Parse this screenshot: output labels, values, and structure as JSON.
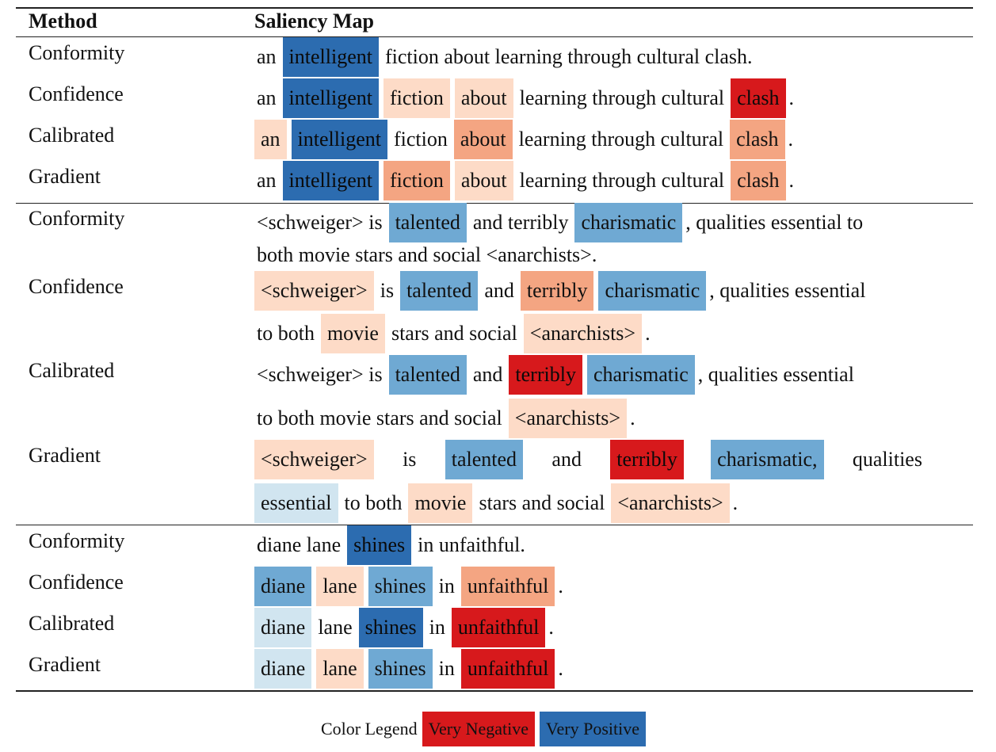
{
  "header": {
    "method": "Method",
    "saliency": "Saliency Map"
  },
  "colors": {
    "vneg": "#d7191c",
    "neg": "#f4a582",
    "wneg": "#fddbc7",
    "wpos": "#d1e5f0",
    "pos": "#6fa9d3",
    "vpos": "#2c6cb0"
  },
  "rows": [
    {
      "method": "Conformity",
      "top": 52,
      "lines": [
        {
          "top": 47,
          "tokens": [
            {
              "t": "an"
            },
            {
              "t": "intelligent",
              "c": "vpos"
            },
            {
              "t": "fiction about learning through cultural clash."
            }
          ]
        }
      ]
    },
    {
      "method": "Confidence",
      "top": 104,
      "lines": [
        {
          "top": 99,
          "tokens": [
            {
              "t": "an"
            },
            {
              "t": "intelligent",
              "c": "vpos"
            },
            {
              "t": "fiction",
              "c": "wneg"
            },
            {
              "t": "about",
              "c": "wneg"
            },
            {
              "t": "learning through cultural"
            },
            {
              "t": "clash",
              "c": "vneg"
            },
            {
              "t": ".",
              "p": 1
            }
          ]
        }
      ]
    },
    {
      "method": "Calibrated",
      "top": 156,
      "lines": [
        {
          "top": 151,
          "tokens": [
            {
              "t": "an",
              "c": "wneg"
            },
            {
              "t": "intelligent",
              "c": "vpos"
            },
            {
              "t": "fiction"
            },
            {
              "t": "about",
              "c": "neg"
            },
            {
              "t": "learning through cultural"
            },
            {
              "t": "clash",
              "c": "neg"
            },
            {
              "t": ".",
              "p": 1
            }
          ]
        }
      ]
    },
    {
      "method": "Gradient",
      "top": 208,
      "lines": [
        {
          "top": 203,
          "tokens": [
            {
              "t": "an"
            },
            {
              "t": "intelligent",
              "c": "vpos"
            },
            {
              "t": "fiction",
              "c": "neg"
            },
            {
              "t": "about",
              "c": "wneg"
            },
            {
              "t": "learning through cultural"
            },
            {
              "t": "clash",
              "c": "neg"
            },
            {
              "t": ".",
              "p": 1
            }
          ]
        }
      ]
    },
    {
      "method": "Conformity",
      "top": 261,
      "lines": [
        {
          "top": 256,
          "tokens": [
            {
              "t": "<schweiger> is"
            },
            {
              "t": "talented",
              "c": "pos"
            },
            {
              "t": "and terribly"
            },
            {
              "t": "charismatic",
              "c": "pos"
            },
            {
              "t": ", qualities essential to",
              "p": 1
            }
          ]
        },
        {
          "top": 297,
          "tokens": [
            {
              "t": "both movie stars and social <anarchists>."
            }
          ]
        }
      ]
    },
    {
      "method": "Confidence",
      "top": 347,
      "lines": [
        {
          "top": 342,
          "tokens": [
            {
              "t": "<schweiger>",
              "c": "wneg"
            },
            {
              "t": "is"
            },
            {
              "t": "talented",
              "c": "pos"
            },
            {
              "t": "and"
            },
            {
              "t": "terribly",
              "c": "neg"
            },
            {
              "t": "charismatic",
              "c": "pos"
            },
            {
              "t": ", qualities essential",
              "p": 1
            }
          ]
        },
        {
          "top": 396,
          "tokens": [
            {
              "t": "to both"
            },
            {
              "t": "movie",
              "c": "wneg"
            },
            {
              "t": "stars and social"
            },
            {
              "t": "<anarchists>",
              "c": "wneg"
            },
            {
              "t": ".",
              "p": 1
            }
          ]
        }
      ]
    },
    {
      "method": "Calibrated",
      "top": 453,
      "lines": [
        {
          "top": 448,
          "tokens": [
            {
              "t": "<schweiger> is"
            },
            {
              "t": "talented",
              "c": "pos"
            },
            {
              "t": "and"
            },
            {
              "t": "terribly",
              "c": "vneg"
            },
            {
              "t": "charismatic",
              "c": "pos"
            },
            {
              "t": ", qualities essential",
              "p": 1
            }
          ]
        },
        {
          "top": 503,
          "tokens": [
            {
              "t": "to both movie stars and social"
            },
            {
              "t": "<anarchists>",
              "c": "wneg"
            },
            {
              "t": ".",
              "p": 1
            }
          ]
        }
      ]
    },
    {
      "method": "Gradient",
      "top": 560,
      "lines": [
        {
          "top": 555,
          "justify": true,
          "tokens": [
            {
              "t": "<schweiger>",
              "c": "wneg"
            },
            {
              "t": "is"
            },
            {
              "t": "talented",
              "c": "pos"
            },
            {
              "t": "and"
            },
            {
              "t": "terribly",
              "c": "vneg"
            },
            {
              "t": "charismatic,",
              "c": "pos"
            },
            {
              "t": "qualities"
            }
          ]
        },
        {
          "top": 610,
          "tokens": [
            {
              "t": "essential",
              "c": "wpos"
            },
            {
              "t": "to both"
            },
            {
              "t": "movie",
              "c": "wneg"
            },
            {
              "t": "stars and social"
            },
            {
              "t": "<anarchists>",
              "c": "wneg"
            },
            {
              "t": ".",
              "p": 1
            }
          ]
        }
      ]
    },
    {
      "method": "Conformity",
      "top": 668,
      "lines": [
        {
          "top": 663,
          "tokens": [
            {
              "t": "diane lane"
            },
            {
              "t": "shines",
              "c": "vpos"
            },
            {
              "t": "in unfaithful."
            }
          ]
        }
      ]
    },
    {
      "method": "Confidence",
      "top": 720,
      "lines": [
        {
          "top": 715,
          "tokens": [
            {
              "t": "diane",
              "c": "pos"
            },
            {
              "t": "lane",
              "c": "wneg"
            },
            {
              "t": "shines",
              "c": "pos"
            },
            {
              "t": "in"
            },
            {
              "t": "unfaithful",
              "c": "neg"
            },
            {
              "t": ".",
              "p": 1
            }
          ]
        }
      ]
    },
    {
      "method": "Calibrated",
      "top": 772,
      "lines": [
        {
          "top": 767,
          "tokens": [
            {
              "t": "diane",
              "c": "wpos"
            },
            {
              "t": "lane"
            },
            {
              "t": "shines",
              "c": "vpos"
            },
            {
              "t": "in"
            },
            {
              "t": "unfaithful",
              "c": "vneg"
            },
            {
              "t": ".",
              "p": 1
            }
          ]
        }
      ]
    },
    {
      "method": "Gradient",
      "top": 824,
      "lines": [
        {
          "top": 819,
          "tokens": [
            {
              "t": "diane",
              "c": "wpos"
            },
            {
              "t": "lane",
              "c": "wneg"
            },
            {
              "t": "shines",
              "c": "pos"
            },
            {
              "t": "in"
            },
            {
              "t": "unfaithful",
              "c": "vneg"
            },
            {
              "t": ".",
              "p": 1
            }
          ]
        }
      ]
    }
  ],
  "legend": {
    "label": "Color Legend",
    "neg": "Very Negative",
    "pos": "Very Positive"
  }
}
